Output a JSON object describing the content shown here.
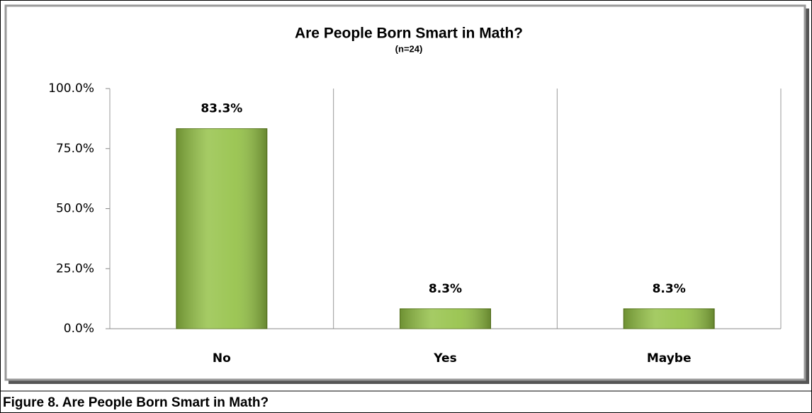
{
  "chart_data": {
    "type": "bar",
    "title": "Are People Born Smart in Math?",
    "subtitle": "(n=24)",
    "categories": [
      "No",
      "Yes",
      "Maybe"
    ],
    "values": [
      83.3,
      8.3,
      8.3
    ],
    "value_labels": [
      "83.3%",
      "8.3%",
      "8.3%"
    ],
    "color": "#92c043",
    "ylim": [
      0,
      100
    ],
    "yticks": [
      {
        "value": 0,
        "label": "0.0%"
      },
      {
        "value": 25,
        "label": "25.0%"
      },
      {
        "value": 50,
        "label": "50.0%"
      },
      {
        "value": 75,
        "label": "75.0%"
      },
      {
        "value": 100,
        "label": "100.0%"
      }
    ],
    "grid": true
  },
  "caption": "Figure 8.  Are People Born Smart in Math?"
}
